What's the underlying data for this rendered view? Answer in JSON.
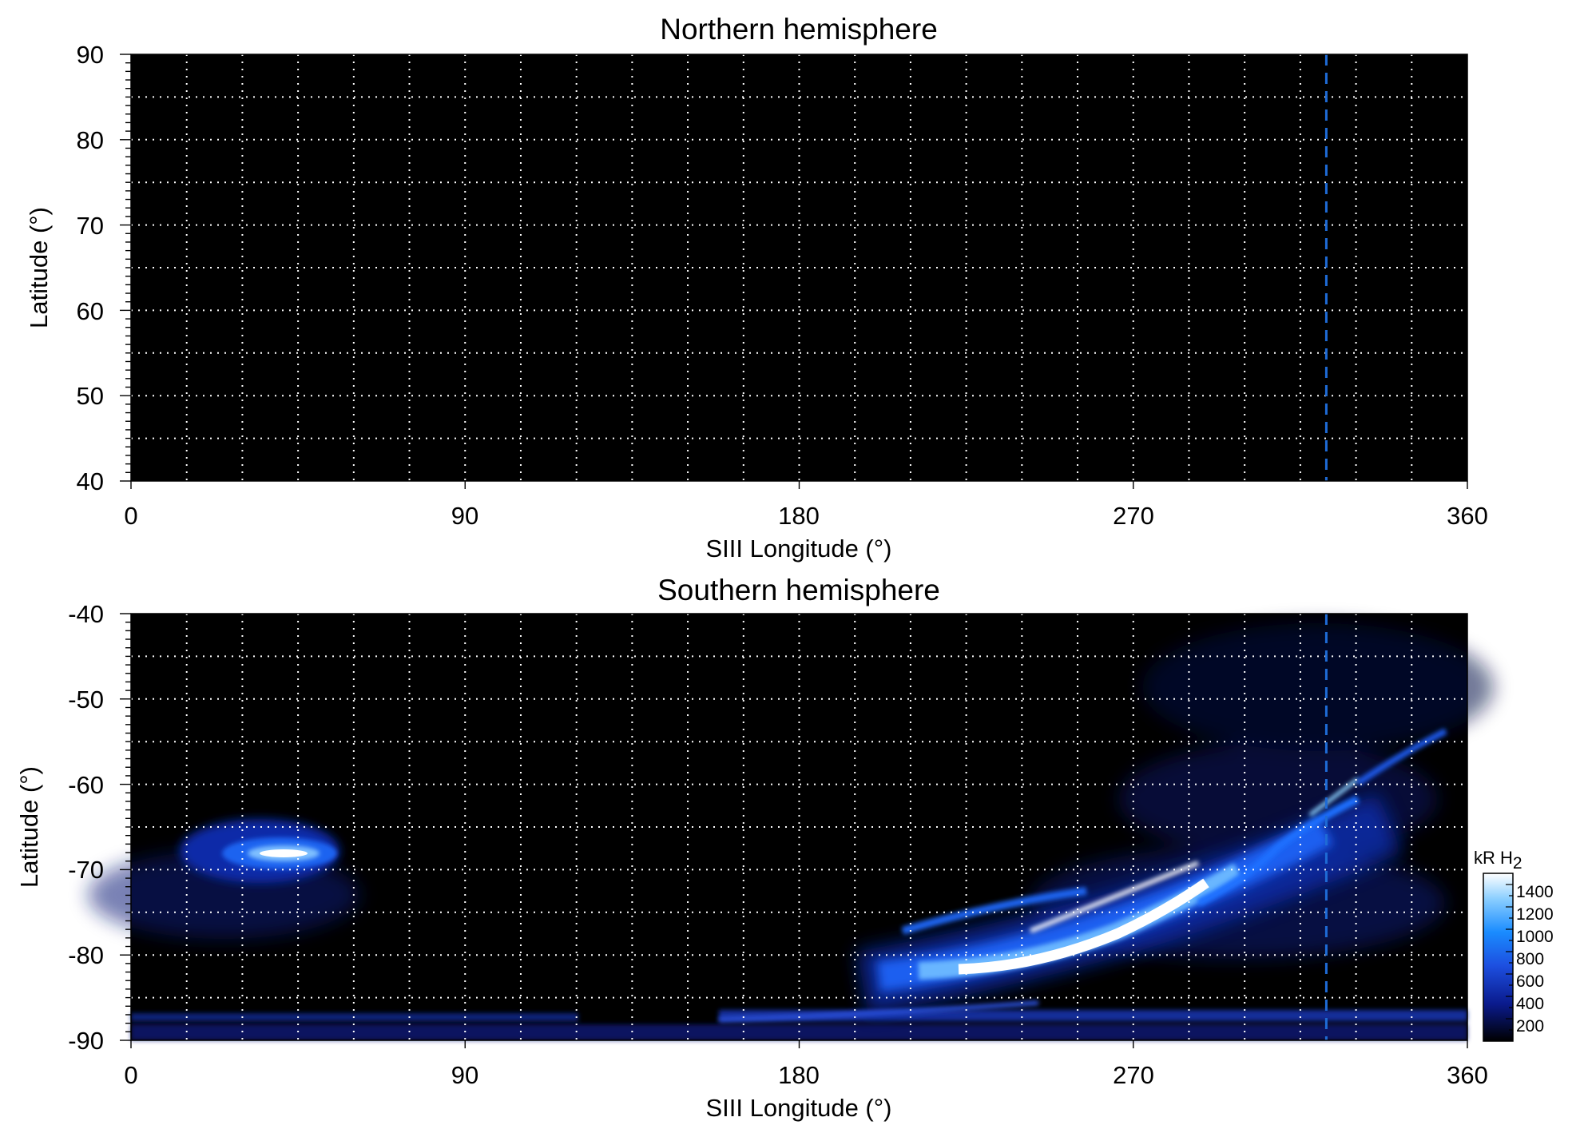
{
  "chart_data": [
    {
      "type": "heatmap",
      "title": "Northern hemisphere",
      "xlabel": "SIII Longitude (°)",
      "ylabel": "Latitude (°)",
      "xlim": [
        0,
        360
      ],
      "ylim": [
        40,
        90
      ],
      "xticks": [
        0,
        90,
        180,
        270,
        360
      ],
      "yticks": [
        40,
        50,
        60,
        70,
        80,
        90
      ],
      "grid": true,
      "grid_x_step": 15,
      "grid_y_step": 5,
      "marker_line": {
        "longitude": 322,
        "style": "dashed",
        "color": "#1e6bd6"
      },
      "emission_features": []
    },
    {
      "type": "heatmap",
      "title": "Southern hemisphere",
      "xlabel": "SIII Longitude (°)",
      "ylabel": "Latitude (°)",
      "xlim": [
        0,
        360
      ],
      "ylim": [
        -90,
        -40
      ],
      "xticks": [
        0,
        90,
        180,
        270,
        360
      ],
      "yticks": [
        -40,
        -50,
        -60,
        -70,
        -80,
        -90
      ],
      "grid": true,
      "grid_x_step": 15,
      "grid_y_step": 5,
      "marker_line": {
        "longitude": 322,
        "style": "dashed",
        "color": "#1e6bd6"
      },
      "emission_features": [
        {
          "name": "spot",
          "lon_range": [
            30,
            57
          ],
          "lat_center": -68.3,
          "peak_kR": 1400
        },
        {
          "name": "main-oval-arc",
          "lon_range": [
            205,
            345
          ],
          "lat_range": [
            -85,
            -67
          ],
          "peak_kR": 1400
        },
        {
          "name": "polar-band",
          "lon_range": [
            0,
            360
          ],
          "lat_center": -88,
          "peak_kR": 400
        }
      ],
      "colorbar": {
        "label_main": "kR H",
        "label_sub": "2",
        "range": [
          0,
          1500
        ],
        "ticks": [
          200,
          400,
          600,
          800,
          1000,
          1200,
          1400
        ],
        "colors": [
          "#000000",
          "#0a1a8c",
          "#1d4fe0",
          "#1a8cff",
          "#8ccfff",
          "#ffffff"
        ]
      }
    }
  ]
}
